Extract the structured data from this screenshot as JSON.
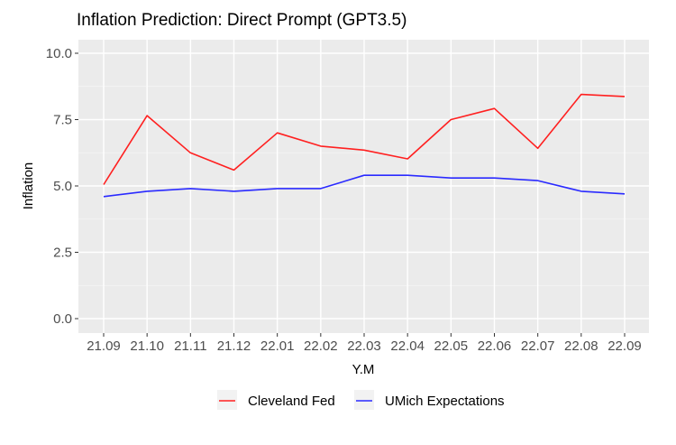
{
  "chart_data": {
    "type": "line",
    "title": "Inflation Prediction: Direct Prompt (GPT3.5)",
    "xlabel": "Y.M",
    "ylabel": "Inflation",
    "ylim": [
      0,
      10
    ],
    "yticks": [
      "0.0",
      "2.5",
      "5.0",
      "7.5",
      "10.0"
    ],
    "ytick_values": [
      0,
      2.5,
      5,
      7.5,
      10
    ],
    "categories": [
      "21.09",
      "21.10",
      "21.11",
      "21.12",
      "22.01",
      "22.02",
      "22.03",
      "22.04",
      "22.05",
      "22.06",
      "22.07",
      "22.08",
      "22.09"
    ],
    "grid": true,
    "legend_position": "bottom",
    "series": [
      {
        "name": "Cleveland Fed",
        "color": "#ff2020",
        "values": [
          5.05,
          7.65,
          6.25,
          5.6,
          7.0,
          6.5,
          6.35,
          6.02,
          7.5,
          7.92,
          6.42,
          8.45,
          8.37
        ]
      },
      {
        "name": "UMich Expectations",
        "color": "#2a2aff",
        "values": [
          4.6,
          4.8,
          4.9,
          4.8,
          4.9,
          4.9,
          5.4,
          5.4,
          5.3,
          5.3,
          5.2,
          4.8,
          4.7
        ]
      }
    ]
  }
}
